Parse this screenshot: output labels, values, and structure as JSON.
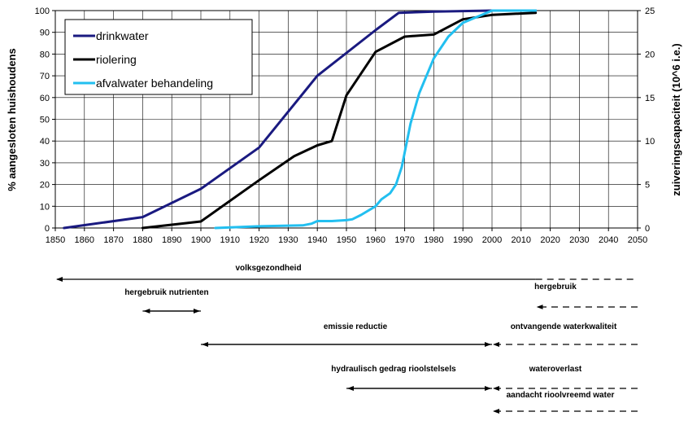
{
  "chart_data": {
    "type": "line",
    "title": "",
    "xlabel": "",
    "ylabel": "% aangesloten huishoudens",
    "y2label": "zuiveringscapaciteit (10^6 i.e.)",
    "xlim": [
      1850,
      2050
    ],
    "ylim": [
      0,
      100
    ],
    "y2lim": [
      0,
      25
    ],
    "xticks": [
      1850,
      1860,
      1870,
      1880,
      1890,
      1900,
      1910,
      1920,
      1930,
      1940,
      1950,
      1960,
      1970,
      1980,
      1990,
      2000,
      2010,
      2020,
      2030,
      2040,
      2050
    ],
    "yticks": [
      0,
      10,
      20,
      30,
      40,
      50,
      60,
      70,
      80,
      90,
      100
    ],
    "y2ticks": [
      0,
      5,
      10,
      15,
      20,
      25
    ],
    "grid": true,
    "legend_position": "top-left",
    "series": [
      {
        "name": "drinkwater",
        "axis": "left",
        "color": "#1a1a80",
        "x": [
          1853,
          1880,
          1900,
          1920,
          1940,
          1960,
          1968,
          1980,
          2000,
          2015
        ],
        "y": [
          0,
          5,
          18,
          37,
          70,
          91,
          99,
          99.5,
          100,
          100
        ]
      },
      {
        "name": "riolering",
        "axis": "left",
        "color": "#000000",
        "x": [
          1880,
          1900,
          1920,
          1932,
          1940,
          1945,
          1950,
          1960,
          1970,
          1980,
          1990,
          2000,
          2015
        ],
        "y": [
          0,
          3,
          22,
          33,
          38,
          40,
          61,
          81,
          88,
          89,
          96,
          98,
          99
        ]
      },
      {
        "name": "afvalwater behandeling",
        "axis": "right",
        "color": "#22bff0",
        "x": [
          1905,
          1920,
          1935,
          1938,
          1940,
          1945,
          1950,
          1952,
          1955,
          1960,
          1962,
          1965,
          1967,
          1969,
          1972,
          1975,
          1980,
          1985,
          1990,
          1995,
          2000,
          2015
        ],
        "y": [
          0,
          0.2,
          0.3,
          0.5,
          0.8,
          0.8,
          0.9,
          1,
          1.5,
          2.5,
          3.3,
          4,
          5,
          7,
          12,
          15.5,
          19.5,
          22,
          23.6,
          24.3,
          25,
          25
        ]
      }
    ],
    "timeline": [
      {
        "label": "volksgezondheid",
        "from": 1850,
        "to": 2015,
        "arrow": "left",
        "dashed_to": 2050
      },
      {
        "label": "hergebruik nutrienten",
        "from": 1880,
        "to": 1900,
        "arrow": "both"
      },
      {
        "label": "hergebruik",
        "from": 2015,
        "to": 2050,
        "arrow": "left",
        "dashed": true
      },
      {
        "label": "emissie reductie",
        "from": 1900,
        "to": 2000,
        "arrow": "both"
      },
      {
        "label": "ontvangende waterkwaliteit",
        "from": 2000,
        "to": 2050,
        "arrow": "left",
        "dashed": true
      },
      {
        "label": "hydraulisch gedrag rioolstelsels",
        "from": 1950,
        "to": 2000,
        "arrow": "both"
      },
      {
        "label": "wateroverlast",
        "from": 2000,
        "to": 2050,
        "arrow": "left",
        "dashed": true
      },
      {
        "label": "aandacht rioolvreemd water",
        "from": 2000,
        "to": 2050,
        "arrow": "left",
        "dashed": true
      }
    ]
  }
}
